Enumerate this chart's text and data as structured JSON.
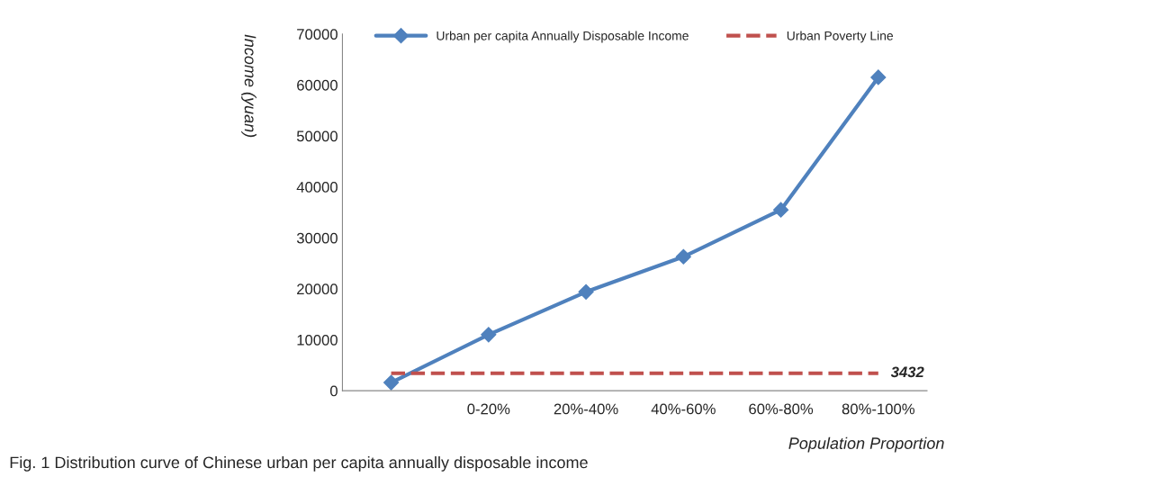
{
  "chart_data": {
    "type": "line",
    "xlabel": "Population Proportion",
    "ylabel": "Income (yuan)",
    "categories": [
      null,
      "0-20%",
      "20%-40%",
      "40%-60%",
      "60%-80%",
      "80%-100%"
    ],
    "ylim": [
      0,
      70000
    ],
    "yticks": [
      0,
      10000,
      20000,
      30000,
      40000,
      50000,
      60000,
      70000
    ],
    "series": [
      {
        "name": "Urban per capita Annually Disposable Income",
        "values": [
          1600,
          11000,
          19400,
          26300,
          35500,
          61500
        ],
        "color": "#4f81bd",
        "marker": "diamond"
      },
      {
        "name": "Urban Poverty Line",
        "values": [
          3432,
          3432,
          3432,
          3432,
          3432,
          3432
        ],
        "color": "#c0504d",
        "marker": "none",
        "line_style": "dashed",
        "value_labels": [
          null,
          null,
          null,
          null,
          null,
          "3432"
        ]
      }
    ],
    "legend": "top",
    "grid": false,
    "line_style": "solid",
    "annotations": [
      "Fig. 1 Distribution curve of Chinese urban per capita annually disposable income"
    ]
  }
}
